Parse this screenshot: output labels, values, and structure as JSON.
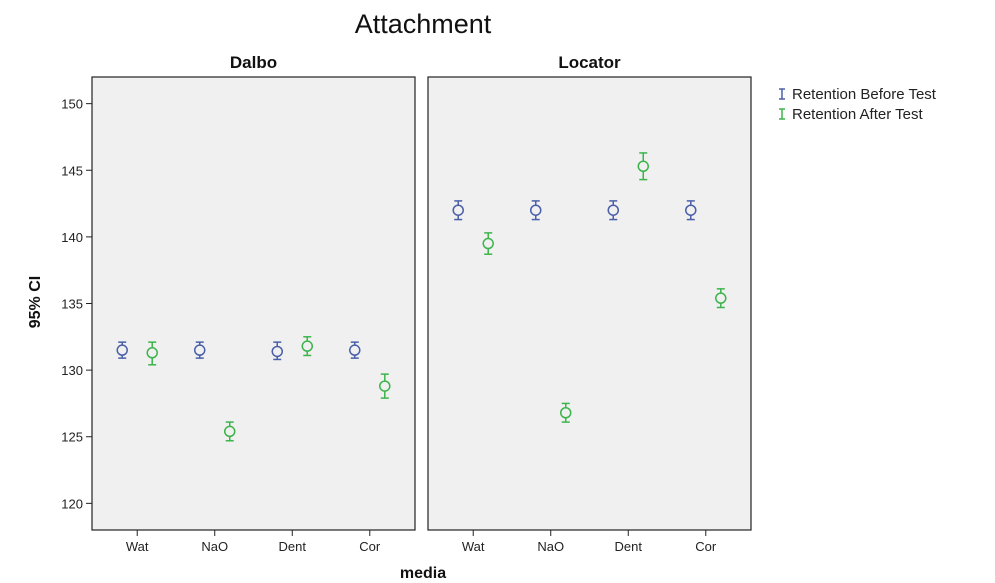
{
  "chart_data": {
    "type": "scatter",
    "title": "Attachment",
    "xlabel": "media",
    "ylabel": "95% CI",
    "ylim": [
      118,
      152
    ],
    "yticks": [
      120,
      125,
      130,
      135,
      140,
      145,
      150
    ],
    "categories": [
      "Wat",
      "NaO",
      "Dent",
      "Cor"
    ],
    "panels": [
      {
        "name": "Dalbo",
        "series": [
          {
            "name": "Retention Before Test",
            "mean": [
              131.5,
              131.5,
              131.4,
              131.5
            ],
            "lower": [
              130.9,
              130.9,
              130.8,
              130.9
            ],
            "upper": [
              132.1,
              132.1,
              132.1,
              132.1
            ]
          },
          {
            "name": "Retention After Test",
            "mean": [
              131.3,
              125.4,
              131.8,
              128.8
            ],
            "lower": [
              130.4,
              124.7,
              131.1,
              127.9
            ],
            "upper": [
              132.1,
              126.1,
              132.5,
              129.7
            ]
          }
        ]
      },
      {
        "name": "Locator",
        "series": [
          {
            "name": "Retention Before Test",
            "mean": [
              142.0,
              142.0,
              142.0,
              142.0
            ],
            "lower": [
              141.3,
              141.3,
              141.3,
              141.3
            ],
            "upper": [
              142.7,
              142.7,
              142.7,
              142.7
            ]
          },
          {
            "name": "Retention After Test",
            "mean": [
              139.5,
              126.8,
              145.3,
              135.4
            ],
            "lower": [
              138.7,
              126.1,
              144.3,
              134.7
            ],
            "upper": [
              140.3,
              127.5,
              146.3,
              136.1
            ]
          }
        ]
      }
    ],
    "legend": {
      "position": "right",
      "entries": [
        {
          "name": "Retention Before Test",
          "color": "#4a5fa8"
        },
        {
          "name": "Retention After Test",
          "color": "#3cb44b"
        }
      ]
    },
    "grid": false,
    "colors": {
      "before": "#4a5fa8",
      "after": "#3cb44b",
      "panel_bg": "#f0f0f0"
    }
  }
}
